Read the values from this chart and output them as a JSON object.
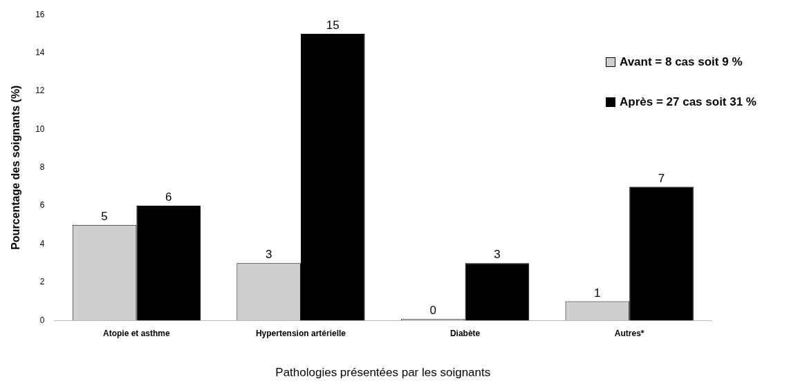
{
  "chart_data": {
    "type": "bar",
    "xlabel": "Pathologies présentées par les soignants",
    "ylabel": "Pourcentage des soignants (%)",
    "categories": [
      "Atopie et asthme",
      "Hypertension artérielle",
      "Diabète",
      "Autres*"
    ],
    "series": [
      {
        "name": "Avant = 8 cas soit 9 %",
        "color": "#d0cece",
        "values": [
          5,
          3,
          0,
          1
        ]
      },
      {
        "name": "Après = 27 cas soit 31 %",
        "color": "#000000",
        "values": [
          6,
          15,
          3,
          7
        ]
      }
    ],
    "ylim": [
      0,
      16
    ],
    "yticks": [
      0,
      2,
      4,
      6,
      8,
      10,
      12,
      14,
      16
    ],
    "grid": false,
    "legend": "top right",
    "data_labels": true
  }
}
